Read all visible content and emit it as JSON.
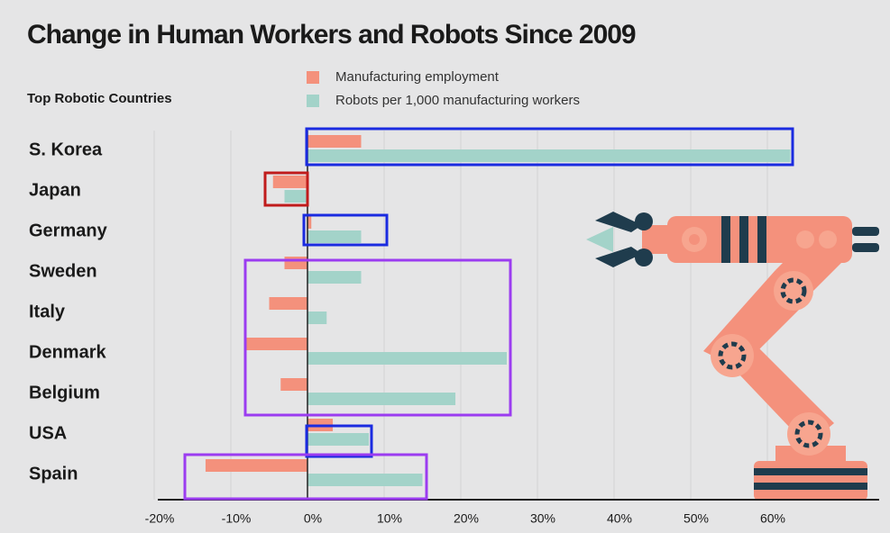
{
  "chart_data": {
    "type": "bar",
    "orientation": "horizontal",
    "title": "Change in Human Workers and Robots Since 2009",
    "subtitle": "Top Robotic Countries",
    "categories": [
      "S. Korea",
      "Japan",
      "Germany",
      "Sweden",
      "Italy",
      "Denmark",
      "Belgium",
      "USA",
      "Spain"
    ],
    "series": [
      {
        "name": "Manufacturing employment",
        "color": "#f4917c",
        "values": [
          7,
          -4.5,
          0.5,
          -3,
          -5,
          -8,
          -3.5,
          3.3,
          -13.3
        ]
      },
      {
        "name": "Robots per 1,000 manufacturing workers",
        "color": "#a3d3c9",
        "values": [
          63,
          -3,
          7,
          7,
          2.5,
          26,
          19.3,
          8,
          15
        ]
      }
    ],
    "xlim": [
      -20,
      75
    ],
    "xticks": [
      {
        "value": -20,
        "label": "-20%"
      },
      {
        "value": -10,
        "label": "-10%"
      },
      {
        "value": 0,
        "label": "0%"
      },
      {
        "value": 10,
        "label": "10%"
      },
      {
        "value": 20,
        "label": "20%"
      },
      {
        "value": 30,
        "label": "30%"
      },
      {
        "value": 40,
        "label": "40%"
      },
      {
        "value": 50,
        "label": "50%"
      },
      {
        "value": 60,
        "label": "60%"
      }
    ],
    "grid": true
  }
}
